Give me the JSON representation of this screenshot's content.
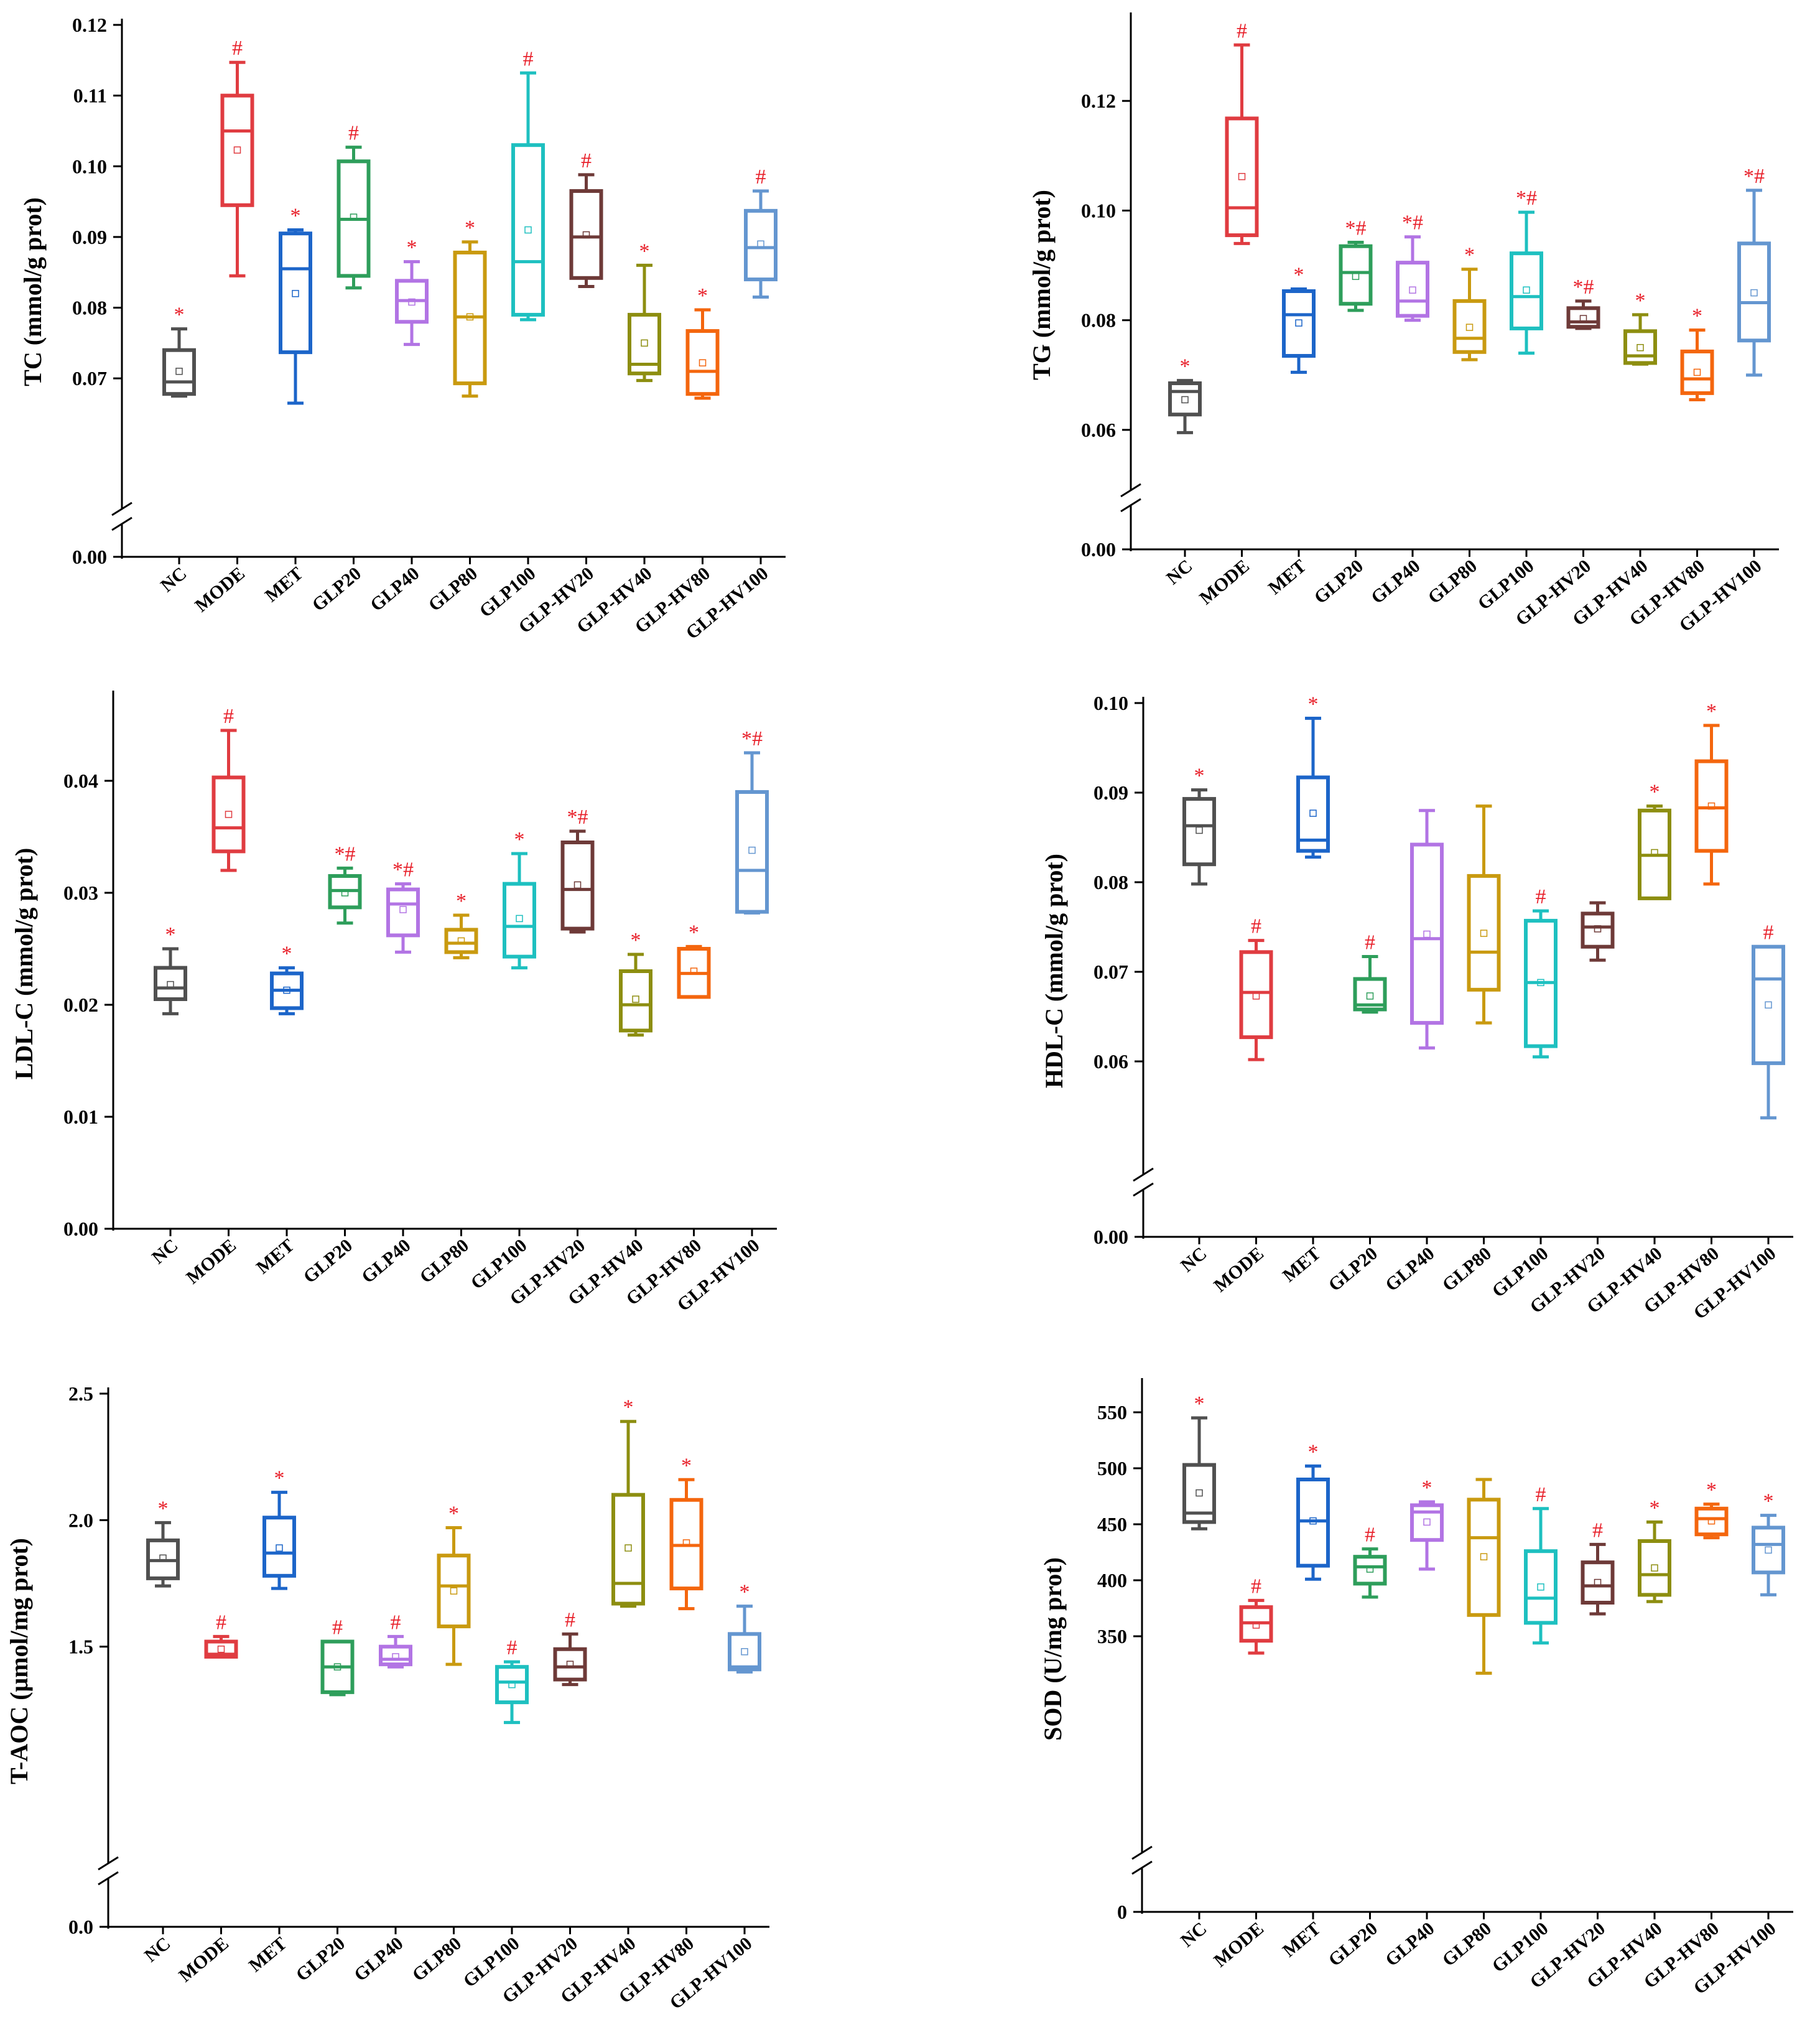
{
  "groups": [
    "NC",
    "MODE",
    "MET",
    "GLP20",
    "GLP40",
    "GLP80",
    "GLP100",
    "GLP-HV20",
    "GLP-HV40",
    "GLP-HV80",
    "GLP-HV100"
  ],
  "colors": [
    "#505050",
    "#e03c41",
    "#1c65c9",
    "#2e9e5b",
    "#b274e4",
    "#c99a10",
    "#1ec0c0",
    "#6e3a38",
    "#8d8e10",
    "#f4660e",
    "#6496d0"
  ],
  "chart_data": [
    {
      "type": "box",
      "ylabel": "TC (mmol/g prot)",
      "broken_axis": true,
      "ylim": [
        0.065,
        0.12
      ],
      "ticks": [
        "0.07",
        "0.08",
        "0.09",
        "0.10",
        "0.11",
        "0.12"
      ],
      "tick_values": [
        0.07,
        0.08,
        0.09,
        0.1,
        0.11,
        0.12
      ],
      "zero_label": "0.00",
      "boxes": [
        {
          "min": 0.0675,
          "q1": 0.0678,
          "median": 0.0695,
          "q3": 0.074,
          "max": 0.077,
          "mean": 0.071,
          "mark": "*"
        },
        {
          "min": 0.0845,
          "q1": 0.0945,
          "median": 0.105,
          "q3": 0.11,
          "max": 0.1147,
          "mean": 0.1023,
          "mark": "#"
        },
        {
          "min": 0.0665,
          "q1": 0.0737,
          "median": 0.0855,
          "q3": 0.0905,
          "max": 0.091,
          "mean": 0.082,
          "mark": "*"
        },
        {
          "min": 0.0828,
          "q1": 0.0845,
          "median": 0.0925,
          "q3": 0.1007,
          "max": 0.1027,
          "mean": 0.0928,
          "mark": "#"
        },
        {
          "min": 0.0748,
          "q1": 0.078,
          "median": 0.081,
          "q3": 0.0838,
          "max": 0.0865,
          "mean": 0.0808,
          "mark": "*"
        },
        {
          "min": 0.0675,
          "q1": 0.0693,
          "median": 0.0787,
          "q3": 0.0878,
          "max": 0.0893,
          "mean": 0.0787,
          "mark": "*"
        },
        {
          "min": 0.0783,
          "q1": 0.079,
          "median": 0.0865,
          "q3": 0.103,
          "max": 0.1132,
          "mean": 0.091,
          "mark": "#"
        },
        {
          "min": 0.083,
          "q1": 0.0842,
          "median": 0.09,
          "q3": 0.0965,
          "max": 0.0988,
          "mean": 0.0903,
          "mark": "#"
        },
        {
          "min": 0.0697,
          "q1": 0.0707,
          "median": 0.072,
          "q3": 0.079,
          "max": 0.086,
          "mean": 0.075,
          "mark": "*"
        },
        {
          "min": 0.0672,
          "q1": 0.0678,
          "median": 0.071,
          "q3": 0.0767,
          "max": 0.0797,
          "mean": 0.0722,
          "mark": "*"
        },
        {
          "min": 0.0815,
          "q1": 0.084,
          "median": 0.0885,
          "q3": 0.0937,
          "max": 0.0965,
          "mean": 0.089,
          "mark": "#"
        }
      ]
    },
    {
      "type": "box",
      "ylabel": "TG (mmol/g prot)",
      "broken_axis": true,
      "ylim": [
        0.055,
        0.135
      ],
      "ticks": [
        "0.06",
        "0.08",
        "0.10",
        "0.12"
      ],
      "tick_values": [
        0.06,
        0.08,
        0.1,
        0.12
      ],
      "zero_label": "0.00",
      "boxes": [
        {
          "min": 0.0595,
          "q1": 0.0628,
          "median": 0.067,
          "q3": 0.0685,
          "max": 0.069,
          "mean": 0.0655,
          "mark": "*"
        },
        {
          "min": 0.094,
          "q1": 0.0955,
          "median": 0.1005,
          "q3": 0.1168,
          "max": 0.1302,
          "mean": 0.1062,
          "mark": "#"
        },
        {
          "min": 0.0705,
          "q1": 0.0735,
          "median": 0.081,
          "q3": 0.0853,
          "max": 0.0857,
          "mean": 0.0795,
          "mark": "*"
        },
        {
          "min": 0.0818,
          "q1": 0.083,
          "median": 0.0887,
          "q3": 0.0935,
          "max": 0.0942,
          "mean": 0.088,
          "mark": "*#"
        },
        {
          "min": 0.08,
          "q1": 0.0808,
          "median": 0.0835,
          "q3": 0.0905,
          "max": 0.0952,
          "mean": 0.0855,
          "mark": "*#"
        },
        {
          "min": 0.0728,
          "q1": 0.0742,
          "median": 0.0767,
          "q3": 0.0835,
          "max": 0.0893,
          "mean": 0.0787,
          "mark": "*"
        },
        {
          "min": 0.074,
          "q1": 0.0785,
          "median": 0.0843,
          "q3": 0.0922,
          "max": 0.0997,
          "mean": 0.0855,
          "mark": "*#"
        },
        {
          "min": 0.0785,
          "q1": 0.0788,
          "median": 0.0797,
          "q3": 0.0822,
          "max": 0.0835,
          "mean": 0.0803,
          "mark": "*#"
        },
        {
          "min": 0.072,
          "q1": 0.0722,
          "median": 0.0735,
          "q3": 0.078,
          "max": 0.081,
          "mean": 0.075,
          "mark": "*"
        },
        {
          "min": 0.0655,
          "q1": 0.0667,
          "median": 0.0693,
          "q3": 0.0743,
          "max": 0.0782,
          "mean": 0.0705,
          "mark": "*"
        },
        {
          "min": 0.07,
          "q1": 0.0763,
          "median": 0.0832,
          "q3": 0.094,
          "max": 0.1037,
          "mean": 0.085,
          "mark": "*#"
        }
      ]
    },
    {
      "type": "box",
      "ylabel": "LDL-C (mmol/g prot)",
      "broken_axis": false,
      "ylim": [
        0,
        0.0475
      ],
      "ticks": [
        "0.00",
        "0.01",
        "0.02",
        "0.03",
        "0.04"
      ],
      "tick_values": [
        0,
        0.01,
        0.02,
        0.03,
        0.04
      ],
      "boxes": [
        {
          "min": 0.0192,
          "q1": 0.0205,
          "median": 0.0215,
          "q3": 0.0233,
          "max": 0.025,
          "mean": 0.0218,
          "mark": "*"
        },
        {
          "min": 0.032,
          "q1": 0.0337,
          "median": 0.0358,
          "q3": 0.0403,
          "max": 0.0445,
          "mean": 0.037,
          "mark": "#"
        },
        {
          "min": 0.0192,
          "q1": 0.0197,
          "median": 0.0213,
          "q3": 0.0228,
          "max": 0.0233,
          "mean": 0.0213,
          "mark": "*"
        },
        {
          "min": 0.0273,
          "q1": 0.0287,
          "median": 0.0302,
          "q3": 0.0315,
          "max": 0.0322,
          "mean": 0.03,
          "mark": "*#"
        },
        {
          "min": 0.0247,
          "q1": 0.0262,
          "median": 0.029,
          "q3": 0.0303,
          "max": 0.0308,
          "mean": 0.0285,
          "mark": "*#"
        },
        {
          "min": 0.0242,
          "q1": 0.0247,
          "median": 0.0255,
          "q3": 0.0267,
          "max": 0.028,
          "mean": 0.0257,
          "mark": "*"
        },
        {
          "min": 0.0233,
          "q1": 0.0243,
          "median": 0.027,
          "q3": 0.0308,
          "max": 0.0335,
          "mean": 0.0277,
          "mark": "*"
        },
        {
          "min": 0.0265,
          "q1": 0.0268,
          "median": 0.0303,
          "q3": 0.0345,
          "max": 0.0355,
          "mean": 0.0307,
          "mark": "*#"
        },
        {
          "min": 0.0173,
          "q1": 0.0177,
          "median": 0.02,
          "q3": 0.023,
          "max": 0.0245,
          "mean": 0.0205,
          "mark": "*"
        },
        {
          "min": 0.0207,
          "q1": 0.0207,
          "median": 0.0228,
          "q3": 0.025,
          "max": 0.0252,
          "mean": 0.023,
          "mark": "*"
        },
        {
          "min": 0.0282,
          "q1": 0.0283,
          "median": 0.032,
          "q3": 0.039,
          "max": 0.0425,
          "mean": 0.0338,
          "mark": "*#"
        }
      ]
    },
    {
      "type": "box",
      "ylabel": "HDL-C (mmol/g prot)",
      "broken_axis": true,
      "ylim": [
        0.05,
        0.1
      ],
      "ticks": [
        "0.06",
        "0.07",
        "0.08",
        "0.09",
        "0.10"
      ],
      "tick_values": [
        0.06,
        0.07,
        0.08,
        0.09,
        0.1
      ],
      "zero_label": "0.00",
      "boxes": [
        {
          "min": 0.0798,
          "q1": 0.082,
          "median": 0.0863,
          "q3": 0.0893,
          "max": 0.0903,
          "mean": 0.0858,
          "mark": "*"
        },
        {
          "min": 0.0602,
          "q1": 0.0627,
          "median": 0.0677,
          "q3": 0.0722,
          "max": 0.0735,
          "mean": 0.0673,
          "mark": "#"
        },
        {
          "min": 0.0828,
          "q1": 0.0835,
          "median": 0.0847,
          "q3": 0.0917,
          "max": 0.0983,
          "mean": 0.0877,
          "mark": "*"
        },
        {
          "min": 0.0655,
          "q1": 0.0658,
          "median": 0.0663,
          "q3": 0.0692,
          "max": 0.0717,
          "mean": 0.0673,
          "mark": "#"
        },
        {
          "min": 0.0615,
          "q1": 0.0643,
          "median": 0.0737,
          "q3": 0.0842,
          "max": 0.088,
          "mean": 0.0742,
          "mark": ""
        },
        {
          "min": 0.0643,
          "q1": 0.068,
          "median": 0.0722,
          "q3": 0.0807,
          "max": 0.0885,
          "mean": 0.0743,
          "mark": ""
        },
        {
          "min": 0.0605,
          "q1": 0.0617,
          "median": 0.0688,
          "q3": 0.0757,
          "max": 0.0768,
          "mean": 0.0688,
          "mark": "#"
        },
        {
          "min": 0.0713,
          "q1": 0.0728,
          "median": 0.075,
          "q3": 0.0765,
          "max": 0.0777,
          "mean": 0.0748,
          "mark": ""
        },
        {
          "min": 0.0782,
          "q1": 0.0782,
          "median": 0.083,
          "q3": 0.088,
          "max": 0.0885,
          "mean": 0.0833,
          "mark": "*"
        },
        {
          "min": 0.0798,
          "q1": 0.0835,
          "median": 0.0883,
          "q3": 0.0935,
          "max": 0.0975,
          "mean": 0.0885,
          "mark": "*"
        },
        {
          "min": 0.0537,
          "q1": 0.0598,
          "median": 0.0692,
          "q3": 0.0728,
          "max": 0.0728,
          "mean": 0.0663,
          "mark": "#"
        }
      ]
    },
    {
      "type": "box",
      "ylabel": "T-AOC (μmol/mg prot)",
      "broken_axis": true,
      "ylim": [
        1.0,
        2.5
      ],
      "ticks": [
        "1.5",
        "2.0",
        "2.5"
      ],
      "tick_values": [
        1.5,
        2.0,
        2.5
      ],
      "zero_label": "0.0",
      "boxes": [
        {
          "min": 1.74,
          "q1": 1.77,
          "median": 1.84,
          "q3": 1.92,
          "max": 1.99,
          "mean": 1.85,
          "mark": "*"
        },
        {
          "min": 1.46,
          "q1": 1.46,
          "median": 1.47,
          "q3": 1.52,
          "max": 1.54,
          "mean": 1.49,
          "mark": "#"
        },
        {
          "min": 1.73,
          "q1": 1.78,
          "median": 1.87,
          "q3": 2.01,
          "max": 2.11,
          "mean": 1.89,
          "mark": "*"
        },
        {
          "min": 1.31,
          "q1": 1.32,
          "median": 1.42,
          "q3": 1.52,
          "max": 1.52,
          "mean": 1.42,
          "mark": "#"
        },
        {
          "min": 1.42,
          "q1": 1.43,
          "median": 1.45,
          "q3": 1.5,
          "max": 1.54,
          "mean": 1.46,
          "mark": "#"
        },
        {
          "min": 1.43,
          "q1": 1.58,
          "median": 1.74,
          "q3": 1.86,
          "max": 1.97,
          "mean": 1.72,
          "mark": "*"
        },
        {
          "min": 1.2,
          "q1": 1.28,
          "median": 1.36,
          "q3": 1.42,
          "max": 1.44,
          "mean": 1.35,
          "mark": "#"
        },
        {
          "min": 1.35,
          "q1": 1.37,
          "median": 1.42,
          "q3": 1.49,
          "max": 1.55,
          "mean": 1.43,
          "mark": "#"
        },
        {
          "min": 1.66,
          "q1": 1.67,
          "median": 1.75,
          "q3": 2.1,
          "max": 2.39,
          "mean": 1.89,
          "mark": "*"
        },
        {
          "min": 1.65,
          "q1": 1.73,
          "median": 1.9,
          "q3": 2.08,
          "max": 2.16,
          "mean": 1.91,
          "mark": "*"
        },
        {
          "min": 1.4,
          "q1": 1.41,
          "median": 1.42,
          "q3": 1.55,
          "max": 1.66,
          "mean": 1.48,
          "mark": "*"
        }
      ]
    },
    {
      "type": "box",
      "ylabel": "SOD (U/mg prot)",
      "broken_axis": true,
      "ylim": [
        300,
        575
      ],
      "ticks": [
        "350",
        "400",
        "450",
        "500",
        "550"
      ],
      "tick_values": [
        350,
        400,
        450,
        500,
        550
      ],
      "zero_label": "0",
      "boxes": [
        {
          "min": 446,
          "q1": 452,
          "median": 460,
          "q3": 503,
          "max": 545,
          "mean": 478,
          "mark": "*"
        },
        {
          "min": 335,
          "q1": 346,
          "median": 362,
          "q3": 376,
          "max": 382,
          "mean": 360,
          "mark": "#"
        },
        {
          "min": 401,
          "q1": 413,
          "median": 453,
          "q3": 490,
          "max": 502,
          "mean": 453,
          "mark": "*"
        },
        {
          "min": 385,
          "q1": 397,
          "median": 412,
          "q3": 421,
          "max": 428,
          "mean": 410,
          "mark": "#"
        },
        {
          "min": 410,
          "q1": 436,
          "median": 461,
          "q3": 467,
          "max": 470,
          "mean": 452,
          "mark": "*"
        },
        {
          "min": 317,
          "q1": 369,
          "median": 438,
          "q3": 472,
          "max": 490,
          "mean": 421,
          "mark": ""
        },
        {
          "min": 344,
          "q1": 362,
          "median": 384,
          "q3": 426,
          "max": 464,
          "mean": 394,
          "mark": "#"
        },
        {
          "min": 370,
          "q1": 380,
          "median": 395,
          "q3": 416,
          "max": 432,
          "mean": 398,
          "mark": "#"
        },
        {
          "min": 381,
          "q1": 387,
          "median": 405,
          "q3": 435,
          "max": 452,
          "mean": 411,
          "mark": "*"
        },
        {
          "min": 438,
          "q1": 441,
          "median": 455,
          "q3": 464,
          "max": 468,
          "mean": 453,
          "mark": "*"
        },
        {
          "min": 387,
          "q1": 407,
          "median": 432,
          "q3": 447,
          "max": 458,
          "mean": 427,
          "mark": "*"
        }
      ]
    }
  ]
}
